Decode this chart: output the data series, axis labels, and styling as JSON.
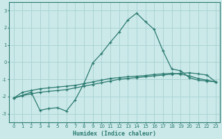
{
  "xlabel": "Humidex (Indice chaleur)",
  "ylabel": "",
  "xlim": [
    -0.5,
    23.5
  ],
  "ylim": [
    -3.5,
    3.5
  ],
  "xticks": [
    0,
    1,
    2,
    3,
    4,
    5,
    6,
    7,
    8,
    9,
    10,
    11,
    12,
    13,
    14,
    15,
    16,
    17,
    18,
    19,
    20,
    21,
    22,
    23
  ],
  "yticks": [
    -3,
    -2,
    -1,
    0,
    1,
    2,
    3
  ],
  "background_color": "#cce9e9",
  "grid_color": "#aad4d4",
  "line_color": "#2a7a70",
  "line1_x": [
    0,
    1,
    2,
    3,
    4,
    5,
    6,
    7,
    8,
    9,
    10,
    11,
    12,
    13,
    14,
    15,
    16,
    17,
    18,
    19,
    20,
    21,
    22,
    23
  ],
  "line1_y": [
    -2.1,
    -1.75,
    -1.65,
    -1.55,
    -1.5,
    -1.45,
    -1.4,
    -1.35,
    -1.25,
    -1.15,
    -1.05,
    -0.95,
    -0.9,
    -0.85,
    -0.82,
    -0.78,
    -0.72,
    -0.68,
    -0.65,
    -0.7,
    -0.8,
    -0.95,
    -1.05,
    -1.15
  ],
  "line2_x": [
    0,
    2,
    3,
    4,
    5,
    6,
    7,
    8,
    9,
    10,
    11,
    12,
    13,
    14,
    15,
    16,
    17,
    18,
    19,
    20,
    21,
    22,
    23
  ],
  "line2_y": [
    -2.1,
    -1.75,
    -2.8,
    -2.7,
    -2.65,
    -2.85,
    -2.2,
    -1.25,
    -0.05,
    0.5,
    1.15,
    1.75,
    2.45,
    2.85,
    2.35,
    1.9,
    0.65,
    -0.4,
    -0.5,
    -0.9,
    -1.05,
    -1.1,
    -1.15
  ],
  "line3_x": [
    0,
    1,
    2,
    3,
    4,
    5,
    6,
    7,
    8,
    9,
    10,
    11,
    12,
    13,
    14,
    15,
    16,
    17,
    18,
    19,
    20,
    21,
    22,
    23
  ],
  "line3_y": [
    -2.1,
    -1.95,
    -1.85,
    -1.75,
    -1.7,
    -1.65,
    -1.6,
    -1.5,
    -1.4,
    -1.3,
    -1.2,
    -1.1,
    -1.0,
    -0.95,
    -0.9,
    -0.85,
    -0.8,
    -0.75,
    -0.7,
    -0.65,
    -0.62,
    -0.68,
    -0.75,
    -1.15
  ]
}
